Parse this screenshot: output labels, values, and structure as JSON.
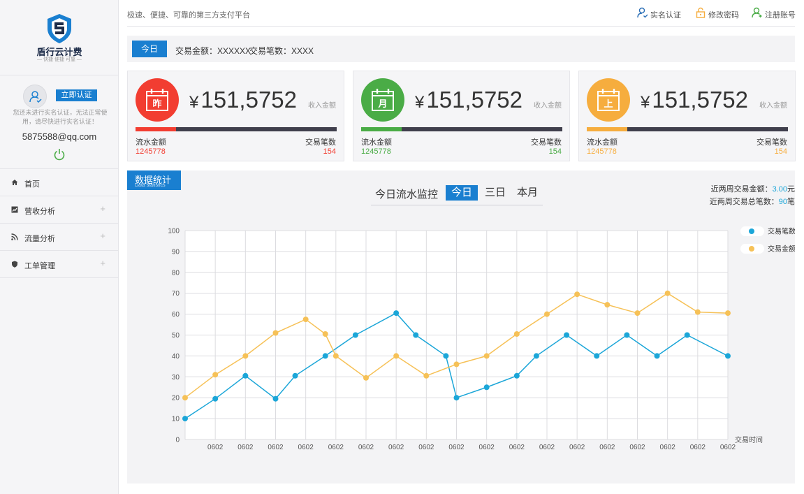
{
  "logo": {
    "name": "盾行云计费",
    "slogan": "— 快捷 便捷 可靠 —"
  },
  "user": {
    "verify_label": "立即认证",
    "warning": "您还未进行实名认证，无法正常使用，请尽快进行实名认证！",
    "email": "5875588@qq.com"
  },
  "menu": [
    {
      "label": "首页",
      "icon": "home-icon"
    },
    {
      "label": "营收分析",
      "icon": "chart-icon",
      "expand": "+"
    },
    {
      "label": "流量分析",
      "icon": "rss-icon",
      "expand": "+"
    },
    {
      "label": "工单管理",
      "icon": "shield-icon",
      "expand": "+"
    }
  ],
  "header": {
    "slogan": "极速、便捷、可靠的第三方支付平台",
    "links": [
      {
        "label": "实名认证",
        "icon": "user-verify-icon"
      },
      {
        "label": "修改密码",
        "icon": "lock-icon"
      },
      {
        "label": "注册账号",
        "icon": "user-add-icon"
      }
    ]
  },
  "summary": {
    "today_label": "今日",
    "amount": "交易金额：XXXXXX",
    "count": "交易笔数：XXXX"
  },
  "cards": [
    {
      "icon_char": "昨",
      "color": "#f23d31",
      "value": "151,5752",
      "currency": "¥",
      "caption": "收入金额",
      "label_left": "流水金额",
      "label_right": "交易笔数",
      "value_left": "1245778",
      "value_right": "154",
      "progress": 0.2
    },
    {
      "icon_char": "月",
      "color": "#4aac46",
      "value": "151,5752",
      "currency": "¥",
      "caption": "收入金额",
      "label_left": "流水金额",
      "label_right": "交易笔数",
      "value_left": "1245778",
      "value_right": "154",
      "progress": 0.2
    },
    {
      "icon_char": "上",
      "color": "#f6ad3e",
      "value": "151,5752",
      "currency": "¥",
      "caption": "收入金额",
      "label_left": "流水金额",
      "label_right": "交易笔数",
      "value_left": "1245778",
      "value_right": "154",
      "progress": 0.2
    }
  ],
  "stats": {
    "tag_cn": "数据统计",
    "tag_en": "Data statistics",
    "chart_title": "今日流水监控",
    "tabs": [
      "今日",
      "三日",
      "本月"
    ],
    "active_tab": 0,
    "two_week_amount_label": "近两周交易金额：",
    "two_week_amount_value": "3.00",
    "two_week_amount_unit": "元",
    "two_week_count_label": "近两周交易总笔数：",
    "two_week_count_value": "90",
    "two_week_count_unit": "笔"
  },
  "chart_data": {
    "type": "line",
    "x": [
      "",
      "0602",
      "0602",
      "0602",
      "0602",
      "0602",
      "0602",
      "0602",
      "0602",
      "0602",
      "0602",
      "0602",
      "0602",
      "0602",
      "0602",
      "0602",
      "0602",
      "0602",
      "0602"
    ],
    "xlabel": "交易时间",
    "ylim": [
      0,
      100
    ],
    "yticks": [
      0,
      10,
      20,
      30,
      40,
      50,
      60,
      70,
      80,
      90,
      100
    ],
    "grid": true,
    "legend": "top-right",
    "series": [
      {
        "name": "交易笔数",
        "color": "#1ba6d8",
        "points": [
          [
            0,
            10
          ],
          [
            1,
            19.5
          ],
          [
            2,
            30.5
          ],
          [
            3,
            19.5
          ],
          [
            3.65,
            30.5
          ],
          [
            4.65,
            40
          ],
          [
            5.65,
            50
          ],
          [
            7,
            60.5
          ],
          [
            7.65,
            50
          ],
          [
            8.65,
            40
          ],
          [
            9,
            20
          ],
          [
            10,
            25
          ],
          [
            11,
            30.5
          ],
          [
            11.65,
            40
          ],
          [
            12.65,
            50
          ],
          [
            13.65,
            40
          ],
          [
            14.65,
            50
          ],
          [
            15.65,
            40
          ],
          [
            16.65,
            50
          ],
          [
            18,
            40
          ]
        ]
      },
      {
        "name": "交易金额",
        "color": "#f6c157",
        "points": [
          [
            0,
            20
          ],
          [
            1,
            31
          ],
          [
            2,
            40
          ],
          [
            3,
            51
          ],
          [
            4,
            57.5
          ],
          [
            4.65,
            50.5
          ],
          [
            5,
            40
          ],
          [
            6,
            29.5
          ],
          [
            7,
            40
          ],
          [
            8,
            30.5
          ],
          [
            9,
            36
          ],
          [
            10,
            40
          ],
          [
            11,
            50.5
          ],
          [
            12,
            60
          ],
          [
            13,
            69.5
          ],
          [
            14,
            64.5
          ],
          [
            15,
            60.5
          ],
          [
            16,
            70
          ],
          [
            17,
            61
          ],
          [
            18,
            60.5
          ]
        ]
      }
    ]
  }
}
